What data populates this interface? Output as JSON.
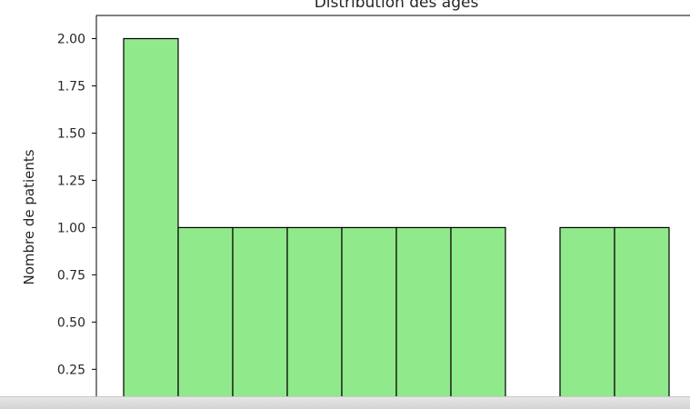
{
  "chart_data": {
    "type": "bar",
    "title": "Distribution des âges",
    "ylabel": "Nombre de patients",
    "xlabel": "",
    "values": [
      2,
      1,
      1,
      1,
      1,
      1,
      1,
      0,
      1,
      1
    ],
    "y_ticks": [
      "0.25",
      "0.50",
      "0.75",
      "1.00",
      "1.25",
      "1.50",
      "1.75",
      "2.00"
    ],
    "ylim": [
      0,
      2.1
    ],
    "grid": false,
    "bar_color": "#90e98a",
    "edge_color": "#000000"
  }
}
